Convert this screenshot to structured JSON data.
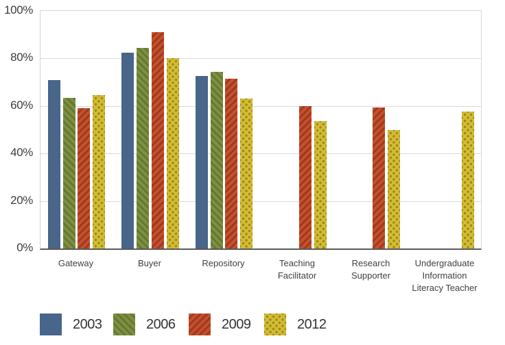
{
  "chart_data": {
    "type": "bar",
    "title": "",
    "xlabel": "",
    "ylabel": "",
    "ylim": [
      0,
      100
    ],
    "ytick_labels": [
      "0%",
      "20%",
      "40%",
      "60%",
      "80%",
      "100%"
    ],
    "ytick_values": [
      0,
      20,
      40,
      60,
      80,
      100
    ],
    "grid": "horizontal",
    "legend_position": "bottom",
    "categories": [
      "Gateway",
      "Buyer",
      "Repository",
      "Teaching Facilitator",
      "Research Supporter",
      "Undergraduate Information Literacy Teacher"
    ],
    "series": [
      {
        "name": "2003",
        "pattern": "solid",
        "color": "#48658a",
        "accent": "#48658a",
        "values": [
          71,
          82.5,
          72.5,
          null,
          null,
          null
        ]
      },
      {
        "name": "2006",
        "pattern": "diagonal-down",
        "color": "#7d9044",
        "accent": "#66782e",
        "values": [
          63.5,
          84.5,
          74.5,
          null,
          null,
          null
        ]
      },
      {
        "name": "2009",
        "pattern": "diagonal-up",
        "color": "#c3512d",
        "accent": "#a1381e",
        "values": [
          59,
          91,
          71.5,
          60,
          59.5,
          null
        ]
      },
      {
        "name": "2012",
        "pattern": "dots",
        "color": "#d3bc35",
        "accent": "#9c8a16",
        "values": [
          64.5,
          80,
          63,
          53.5,
          50,
          57.5
        ]
      }
    ],
    "colors": {
      "gridline": "#d9d9d9",
      "axis_line": "#595959",
      "label_text": "#404040"
    }
  }
}
